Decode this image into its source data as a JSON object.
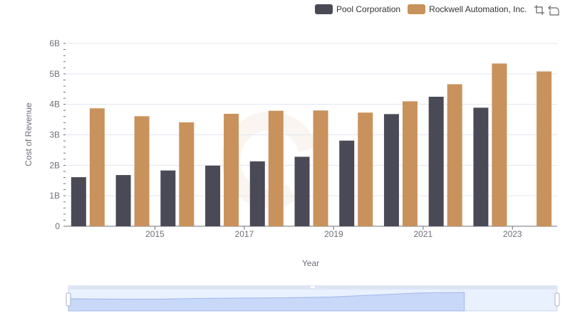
{
  "legend": {
    "items": [
      {
        "name": "Pool Corporation",
        "color": "#4a4a56"
      },
      {
        "name": "Rockwell Automation, Inc.",
        "color": "#c9925c"
      }
    ]
  },
  "toolbox": {
    "icons": [
      "zoom-icon",
      "zoom-reset-icon"
    ]
  },
  "chart_data": {
    "type": "bar",
    "categories": [
      "2014",
      "2015",
      "2016",
      "2017",
      "2018",
      "2019",
      "2020",
      "2021",
      "2022",
      "2023",
      "2024"
    ],
    "x_tick_labels": [
      "2015",
      "2017",
      "2019",
      "2021",
      "2023"
    ],
    "series": [
      {
        "name": "Pool Corporation",
        "color": "#4a4a56",
        "values": [
          1.61,
          1.68,
          1.83,
          1.99,
          2.13,
          2.28,
          2.81,
          3.68,
          4.25,
          3.89,
          null
        ]
      },
      {
        "name": "Rockwell Automation, Inc.",
        "color": "#c9925c",
        "values": [
          3.87,
          3.61,
          3.41,
          3.69,
          3.79,
          3.8,
          3.73,
          4.1,
          4.66,
          5.34,
          5.08
        ]
      }
    ],
    "xlabel": "Year",
    "ylabel": "Cost of Revenue",
    "ylim": [
      0,
      6
    ],
    "y_ticks": [
      0,
      1,
      2,
      3,
      4,
      5,
      6
    ],
    "y_tick_labels": [
      "0",
      "1B",
      "2B",
      "3B",
      "4B",
      "5B",
      "6B"
    ],
    "grid": true,
    "legend_position": "top-right",
    "data_zoom": {
      "start": 0,
      "end": 100
    }
  }
}
